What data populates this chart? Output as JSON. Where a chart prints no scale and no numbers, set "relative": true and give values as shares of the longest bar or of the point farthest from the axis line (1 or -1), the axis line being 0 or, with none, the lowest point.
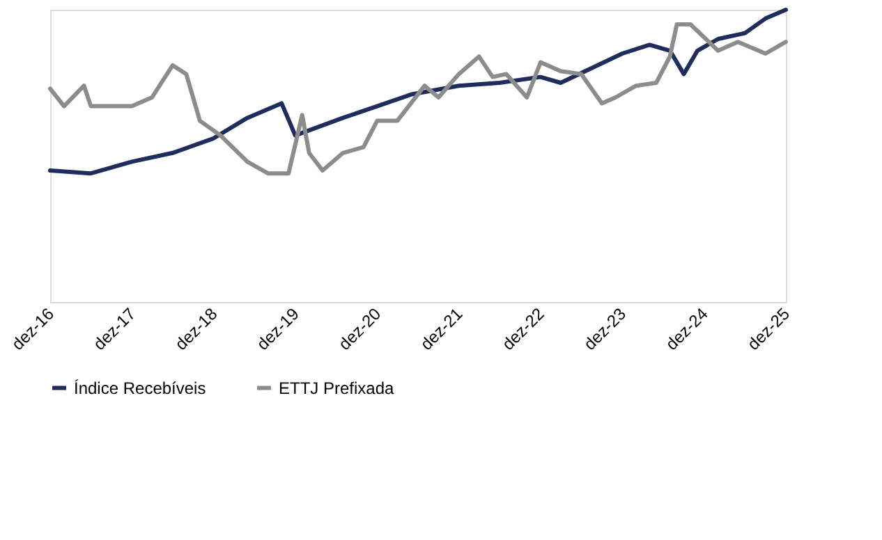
{
  "chart_data": {
    "type": "line",
    "relative": true,
    "grid": false,
    "legend": "bottom",
    "tick_labels": "x",
    "line_style": "solid",
    "marker": "none",
    "xlim": [
      "2016-12",
      "2025-12"
    ],
    "xticks": [
      {
        "value": "2016-12",
        "label": "dez-16"
      },
      {
        "value": "2017-12",
        "label": "dez-17"
      },
      {
        "value": "2018-12",
        "label": "dez-18"
      },
      {
        "value": "2019-12",
        "label": "dez-19"
      },
      {
        "value": "2020-12",
        "label": "dez-20"
      },
      {
        "value": "2021-12",
        "label": "dez-21"
      },
      {
        "value": "2022-12",
        "label": "dez-22"
      },
      {
        "value": "2023-12",
        "label": "dez-23"
      },
      {
        "value": "2024-12",
        "label": "dez-24"
      },
      {
        "value": "2025-12",
        "label": "dez-25"
      }
    ],
    "series": [
      {
        "name": "Índice Recebíveis",
        "color": "#1f2d5c",
        "x": [
          "2016-12",
          "2017-06",
          "2017-12",
          "2018-06",
          "2018-12",
          "2019-05",
          "2019-10",
          "2019-12",
          "2020-07",
          "2020-12",
          "2021-05",
          "2021-12",
          "2022-06",
          "2022-12",
          "2023-03",
          "2023-12",
          "2024-04",
          "2024-07",
          "2024-09",
          "2024-11",
          "2025-02",
          "2025-06",
          "2025-09",
          "2025-12"
        ],
        "values": [
          0.45,
          0.44,
          0.48,
          0.51,
          0.56,
          0.63,
          0.68,
          0.57,
          0.63,
          0.67,
          0.71,
          0.74,
          0.75,
          0.77,
          0.75,
          0.85,
          0.88,
          0.86,
          0.78,
          0.86,
          0.9,
          0.92,
          0.97,
          1.0
        ]
      },
      {
        "name": "ETTJ Prefixada",
        "color": "#8c8c8c",
        "x": [
          "2016-12",
          "2017-02",
          "2017-05",
          "2017-06",
          "2017-12",
          "2018-03",
          "2018-06",
          "2018-08",
          "2018-10",
          "2019-01",
          "2019-05",
          "2019-08",
          "2019-11",
          "2020-01",
          "2020-02",
          "2020-04",
          "2020-07",
          "2020-10",
          "2020-12",
          "2021-03",
          "2021-05",
          "2021-07",
          "2021-09",
          "2021-12",
          "2022-03",
          "2022-05",
          "2022-07",
          "2022-10",
          "2022-12",
          "2023-03",
          "2023-06",
          "2023-09",
          "2023-11",
          "2024-02",
          "2024-05",
          "2024-07",
          "2024-08",
          "2024-10",
          "2025-02",
          "2025-05",
          "2025-09",
          "2025-12"
        ],
        "values": [
          0.73,
          0.67,
          0.74,
          0.67,
          0.67,
          0.7,
          0.81,
          0.78,
          0.62,
          0.57,
          0.48,
          0.44,
          0.44,
          0.64,
          0.51,
          0.45,
          0.51,
          0.53,
          0.62,
          0.62,
          0.68,
          0.74,
          0.7,
          0.78,
          0.84,
          0.77,
          0.78,
          0.7,
          0.82,
          0.79,
          0.78,
          0.68,
          0.7,
          0.74,
          0.75,
          0.84,
          0.95,
          0.95,
          0.86,
          0.89,
          0.85,
          0.89
        ]
      }
    ]
  }
}
